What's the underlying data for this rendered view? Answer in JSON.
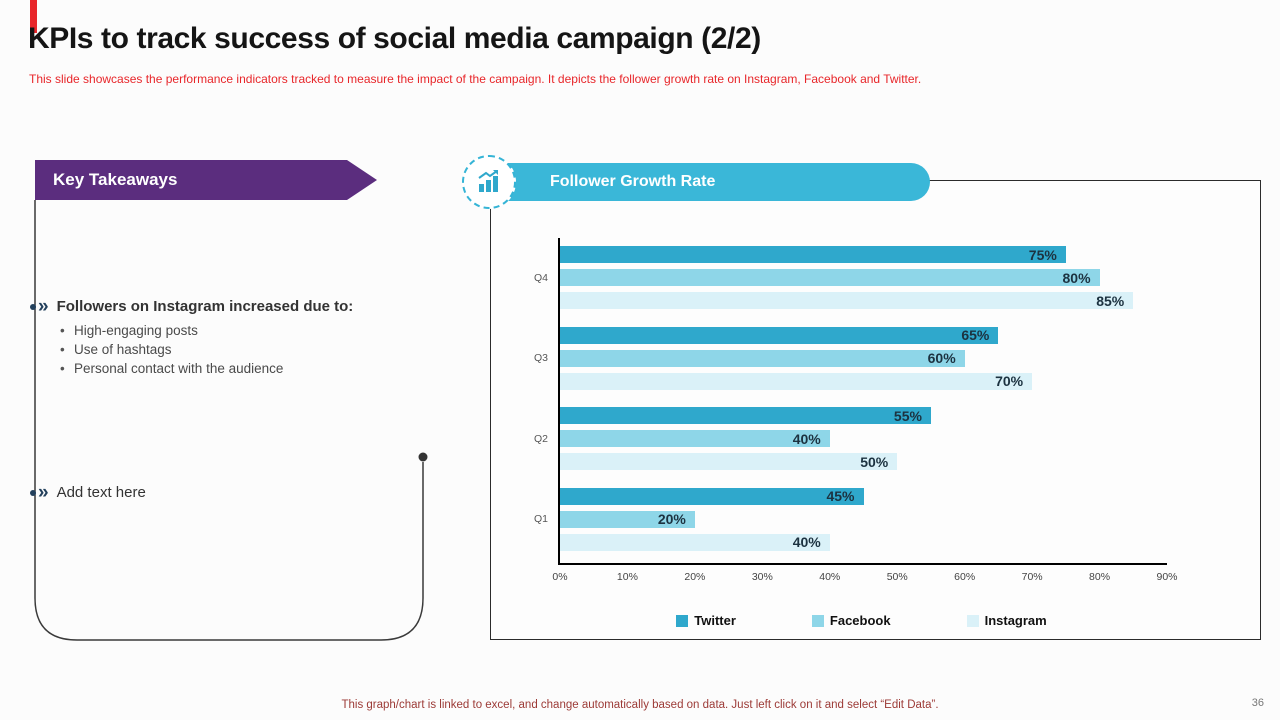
{
  "slide": {
    "title": "KPIs to track success of social media campaign (2/2)",
    "subtitle": "This slide showcases the performance indicators tracked to measure the impact of the campaign. It depicts the follower growth rate on Instagram, Facebook and Twitter.",
    "footer_note": "This graph/chart is linked to excel, and change automatically based on data. Just left click on it and select “Edit Data”.",
    "page_number": "36",
    "accent_color": "#e8262a"
  },
  "key_takeaways": {
    "banner_label": "Key Takeaways",
    "banner_color": "#5b2d7e",
    "bullets": [
      {
        "label": "Followers on Instagram increased due to:",
        "emphasis": true,
        "sub_bullets": [
          "High-engaging posts",
          "Use of hashtags",
          "Personal contact with the audience"
        ]
      },
      {
        "label": "Add text here",
        "emphasis": false,
        "sub_bullets": []
      }
    ]
  },
  "chart_section": {
    "header_label": "Follower Growth Rate",
    "header_color": "#3ab7d8",
    "icon": "bar-chart-growth-icon"
  },
  "chart_data": {
    "type": "bar",
    "orientation": "horizontal",
    "title": "Follower Growth Rate",
    "categories": [
      "Q4",
      "Q3",
      "Q2",
      "Q1"
    ],
    "categories_order": "top-to-bottom",
    "series": [
      {
        "name": "Twitter",
        "color": "#2fa8cc",
        "values": [
          75,
          65,
          55,
          45
        ]
      },
      {
        "name": "Facebook",
        "color": "#8ed6e8",
        "values": [
          80,
          60,
          40,
          20
        ]
      },
      {
        "name": "Instagram",
        "color": "#daf1f8",
        "values": [
          85,
          70,
          50,
          40
        ]
      }
    ],
    "xlim": [
      0,
      90
    ],
    "x_ticks": [
      "0%",
      "10%",
      "20%",
      "30%",
      "40%",
      "50%",
      "60%",
      "70%",
      "80%",
      "90%"
    ],
    "value_suffix": "%",
    "grid": false,
    "legend_position": "bottom",
    "value_label_color": "#1c3240"
  }
}
